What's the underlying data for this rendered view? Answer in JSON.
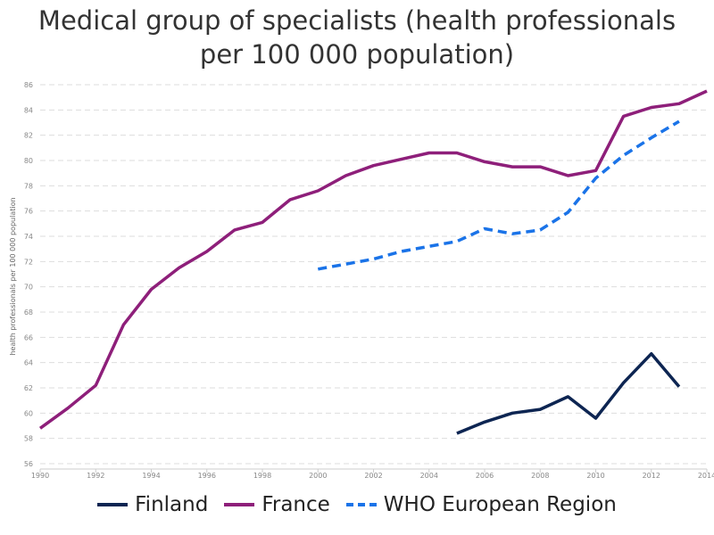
{
  "chart_data": {
    "type": "line",
    "title_line1": "Medical group of specialists (health professionals",
    "title_line2": "per 100 000 population)",
    "ylabel": "health professionals per 100 000 population",
    "xlabel": "",
    "xlim": [
      1990,
      2014
    ],
    "ylim": [
      56,
      86
    ],
    "x_ticks": [
      1990,
      1992,
      1994,
      1996,
      1998,
      2000,
      2002,
      2004,
      2006,
      2008,
      2010,
      2012,
      2014
    ],
    "y_ticks": [
      56,
      58,
      60,
      62,
      64,
      66,
      68,
      70,
      72,
      74,
      76,
      78,
      80,
      82,
      84,
      86
    ],
    "grid": true,
    "legend_position": "bottom",
    "series": [
      {
        "name": "Finland",
        "color": "#0d2552",
        "style": "solid",
        "x": [
          2005,
          2006,
          2007,
          2008,
          2009,
          2010,
          2011,
          2012,
          2013
        ],
        "values": [
          58.4,
          59.3,
          60.0,
          60.3,
          61.3,
          59.6,
          62.4,
          64.7,
          62.1
        ]
      },
      {
        "name": "France",
        "color": "#8e1f7a",
        "style": "solid",
        "x": [
          1990,
          1991,
          1992,
          1993,
          1994,
          1995,
          1996,
          1997,
          1998,
          1999,
          2000,
          2001,
          2002,
          2003,
          2004,
          2005,
          2006,
          2007,
          2008,
          2009,
          2010,
          2011,
          2012,
          2013,
          2014
        ],
        "values": [
          58.8,
          60.4,
          62.2,
          67.0,
          69.8,
          71.5,
          72.8,
          74.5,
          75.1,
          76.9,
          77.6,
          78.8,
          79.6,
          80.1,
          80.6,
          80.6,
          79.9,
          79.5,
          79.5,
          78.8,
          79.2,
          83.5,
          84.2,
          84.5,
          85.5
        ]
      },
      {
        "name": "WHO European Region",
        "color": "#1a73e8",
        "style": "dashed",
        "x": [
          2000,
          2001,
          2002,
          2003,
          2004,
          2005,
          2006,
          2007,
          2008,
          2009,
          2010,
          2011,
          2012,
          2013
        ],
        "values": [
          71.4,
          71.8,
          72.2,
          72.8,
          73.2,
          73.6,
          74.6,
          74.2,
          74.5,
          75.9,
          78.6,
          80.4,
          81.8,
          83.1
        ]
      }
    ]
  }
}
